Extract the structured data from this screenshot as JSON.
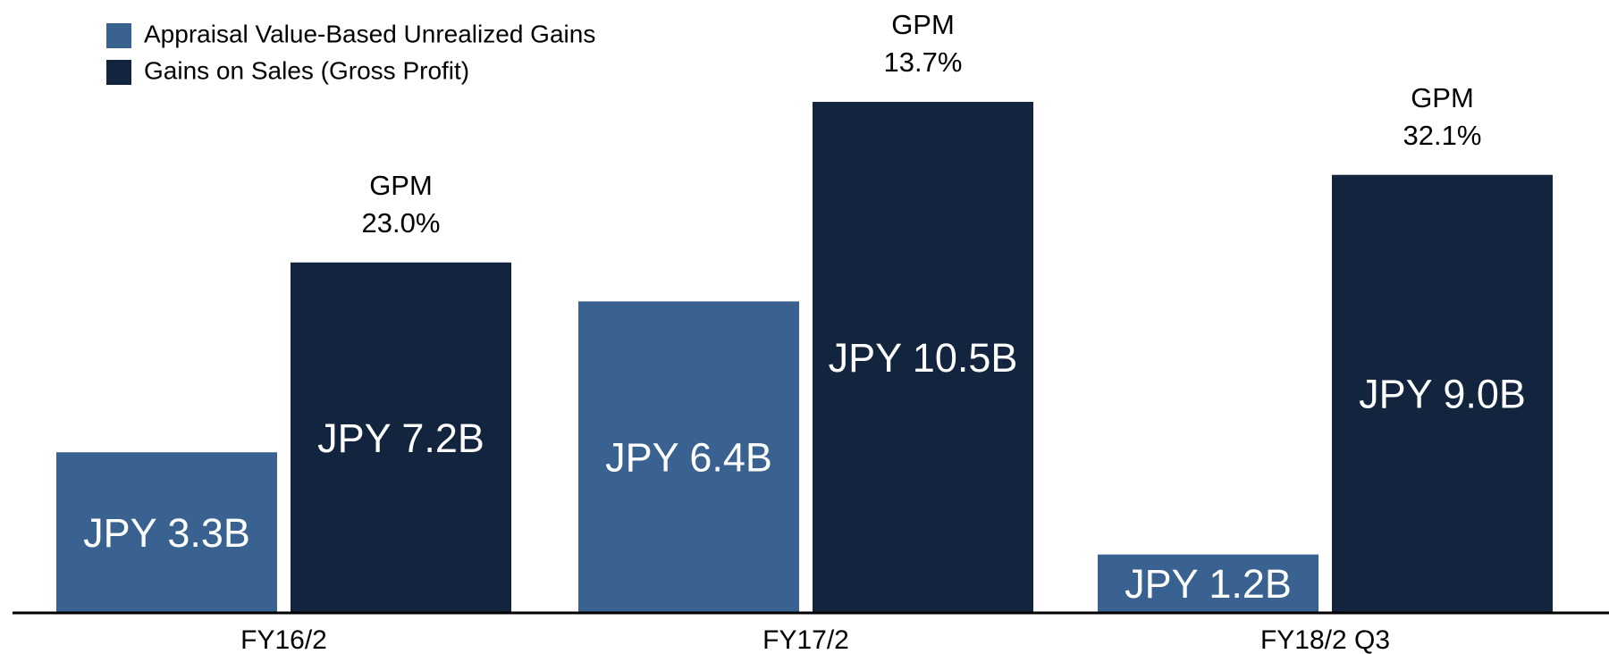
{
  "chart_data": {
    "type": "bar",
    "categories": [
      "FY16/2",
      "FY17/2",
      "FY18/2 Q3"
    ],
    "series": [
      {
        "name": "Appraisal Value-Based Unrealized Gains",
        "color": "#3a6290",
        "values": [
          3.3,
          6.4,
          1.2
        ],
        "value_labels": [
          "JPY 3.3B",
          "JPY 6.4B",
          "JPY 1.2B"
        ]
      },
      {
        "name": "Gains on Sales (Gross Profit)",
        "color": "#12243e",
        "values": [
          7.2,
          10.5,
          9.0
        ],
        "value_labels": [
          "JPY 7.2B",
          "JPY 10.5B",
          "JPY 9.0B"
        ]
      }
    ],
    "annotations": [
      [
        "GPM",
        "23.0%"
      ],
      [
        "GPM",
        "13.7%"
      ],
      [
        "GPM",
        "32.1%"
      ]
    ],
    "legend": "top-left"
  }
}
